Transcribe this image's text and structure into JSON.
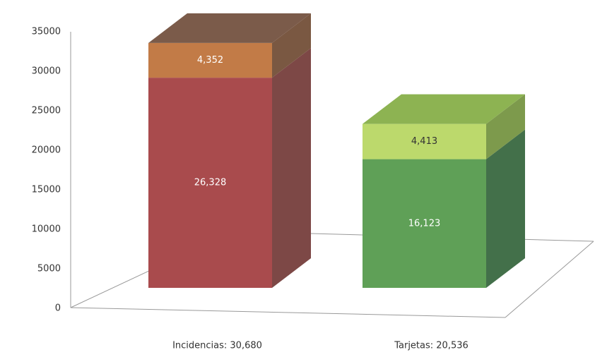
{
  "chart_data": {
    "type": "bar3d_stacked",
    "categories": [
      "Incidencias: 30,680",
      "Tarjetas: 20,536"
    ],
    "series": [
      {
        "values": [
          26328,
          16123
        ],
        "value_labels": [
          "26,328",
          "16,123"
        ],
        "colors": [
          "#a94b4d",
          "#5fa057"
        ],
        "side_colors": [
          "#7d4846",
          "#43704a"
        ],
        "label_colors": [
          "#ffffff",
          "#ffffff"
        ]
      },
      {
        "values": [
          4352,
          4413
        ],
        "value_labels": [
          "4,352",
          "4,413"
        ],
        "colors": [
          "#c27b47",
          "#bcd96c"
        ],
        "side_colors": [
          "#7a5842",
          "#7d9a4c"
        ],
        "label_colors": [
          "#ffffff",
          "#333333"
        ]
      }
    ],
    "top_colors": [
      "#7b5b4a",
      "#8db352"
    ],
    "ylim": [
      0,
      35000
    ],
    "yticks": [
      0,
      5000,
      10000,
      15000,
      20000,
      25000,
      30000,
      35000
    ]
  }
}
